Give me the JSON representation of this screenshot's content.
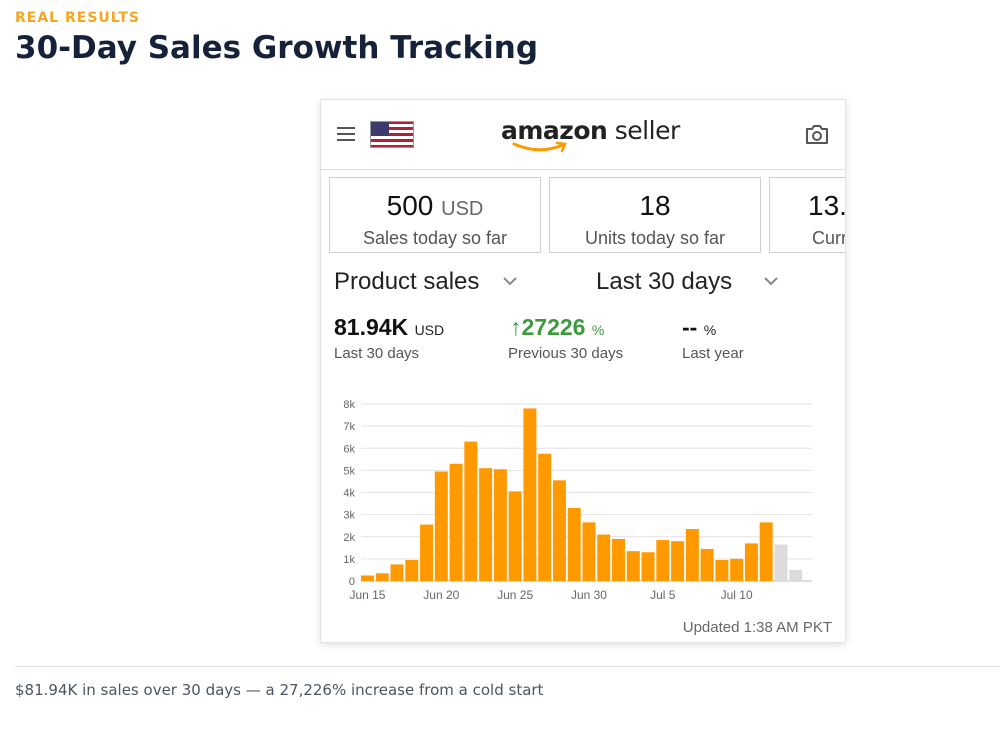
{
  "page": {
    "eyebrow": "REAL RESULTS",
    "title": "30-Day Sales Growth Tracking",
    "caption": "$81.94K in sales over 30 days — a 27,226% increase from a cold start"
  },
  "app": {
    "logo_bold": "amazon",
    "logo_light": " seller",
    "icons": {
      "menu": "hamburger-icon",
      "flag": "us-flag-icon",
      "camera": "camera-icon"
    },
    "stats": [
      {
        "value": "500",
        "unit": "USD",
        "label": "Sales today so far"
      },
      {
        "value": "18",
        "unit": "",
        "label": "Units today so far"
      },
      {
        "value": "13.",
        "unit": "",
        "label": "Curr"
      }
    ],
    "filters": {
      "metric": "Product sales",
      "range": "Last 30 days"
    },
    "metrics": [
      {
        "value": "81.94K",
        "unit": "USD",
        "label": "Last 30 days"
      },
      {
        "arrow": "↑",
        "value": "27226",
        "unit": "%",
        "label": "Previous 30 days"
      },
      {
        "value": "--",
        "unit": "%",
        "label": "Last year"
      }
    ],
    "updated": "Updated 1:38 AM PKT"
  },
  "colors": {
    "accent": "#F5A623",
    "bar": "#FF9900",
    "bar_partial": "#DCDCDC",
    "positive": "#3C9A3C",
    "title": "#16213A"
  },
  "chart_data": {
    "type": "bar",
    "title": "",
    "xlabel": "",
    "ylabel": "",
    "ylim": [
      0,
      8000
    ],
    "y_ticks": [
      "0",
      "1k",
      "2k",
      "3k",
      "4k",
      "5k",
      "6k",
      "7k",
      "8k"
    ],
    "x_tick_labels": [
      "Jun 15",
      "Jun 20",
      "Jun 25",
      "Jun 30",
      "Jul 5",
      "Jul 10"
    ],
    "categories": [
      "Jun 15",
      "Jun 16",
      "Jun 17",
      "Jun 18",
      "Jun 19",
      "Jun 20",
      "Jun 21",
      "Jun 22",
      "Jun 23",
      "Jun 24",
      "Jun 25",
      "Jun 26",
      "Jun 27",
      "Jun 28",
      "Jun 29",
      "Jun 30",
      "Jul 1",
      "Jul 2",
      "Jul 3",
      "Jul 4",
      "Jul 5",
      "Jul 6",
      "Jul 7",
      "Jul 8",
      "Jul 9",
      "Jul 10",
      "Jul 11",
      "Jul 12",
      "Jul 13",
      "Jul 14"
    ],
    "values": [
      250,
      350,
      750,
      950,
      2550,
      4950,
      5300,
      6300,
      5100,
      5050,
      4050,
      7800,
      5750,
      4550,
      3300,
      2650,
      2100,
      1900,
      1350,
      1300,
      1850,
      1800,
      2350,
      1450,
      950,
      1000,
      1700,
      2650,
      1650,
      500
    ],
    "partial_last_n": 2,
    "grid": true
  }
}
